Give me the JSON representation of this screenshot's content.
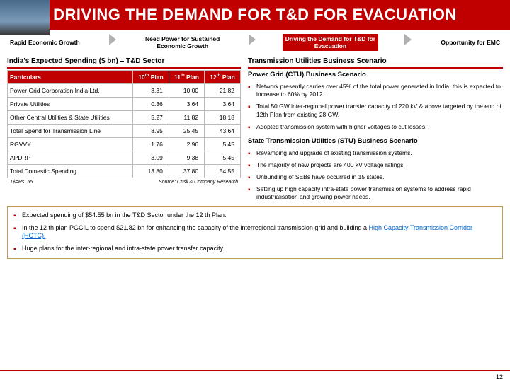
{
  "banner": {
    "title": "DRIVING THE DEMAND FOR T&D FOR EVACUATION"
  },
  "flow": [
    {
      "label": "Rapid Economic Growth",
      "active": false
    },
    {
      "label": "Need Power for Sustained<br>Economic Growth",
      "active": false
    },
    {
      "label": "Driving the Demand for T&D for<br>Evacuation",
      "active": true
    },
    {
      "label": "Opportunity for EMC",
      "active": false
    }
  ],
  "table": {
    "title": "India's Expected Spending ($ bn) – T&D Sector",
    "headers": [
      "Particulars",
      "10th Plan",
      "11th Plan",
      "12th Plan"
    ],
    "rows": [
      [
        "Power Grid Corporation India Ltd.",
        "3.31",
        "10.00",
        "21.82"
      ],
      [
        "Private Utilities",
        "0.36",
        "3.64",
        "3.64"
      ],
      [
        "Other Central Utilities & State Utilities",
        "5.27",
        "11.82",
        "18.18"
      ],
      [
        "Total Spend for Transmission Line",
        "8.95",
        "25.45",
        "43.64"
      ],
      [
        "RGVVY",
        "1.76",
        "2.96",
        "5.45"
      ],
      [
        "APDRP",
        "3.09",
        "9.38",
        "5.45"
      ],
      [
        "Total Domestic Spending",
        "13.80",
        "37.80",
        "54.55"
      ]
    ],
    "footnote_left": "1$=Rs. 55",
    "footnote_right": "Source: Crisil & Company Research"
  },
  "right_title": "Transmission Utilities Business Scenario",
  "ctu": {
    "title": "Power Grid (CTU) Business Scenario",
    "bullets": [
      "Network presently carries over 45% of the total power generated in India; this is expected to increase to 60% by 2012.",
      "Total 50 GW inter-regional power transfer capacity of 220 kV & above targeted by the end of 12th Plan from existing 28 GW.",
      "Adopted transmission system with higher voltages to cut losses."
    ]
  },
  "stu": {
    "title": "State Transmission Utilities (STU) Business Scenario",
    "bullets": [
      "Revamping and upgrade of existing transmission systems.",
      "The majority of new projects are 400 kV voltage ratings.",
      "Unbundling of SEBs have occurred in 15 states.",
      "Setting up high capacity intra-state power transmission systems to address rapid industrialisation and growing power needs."
    ]
  },
  "bottom": [
    "Expected spending of $54.55 bn in the T&D Sector under the 12 th Plan.",
    "In the 12 th plan PGCIL to spend $21.82 bn for enhancing the capacity of the interregional transmission grid and building a <span class='link'>High Capacity Transmission Corridor (HCTC).</span>",
    "Huge plans for the inter-regional and intra-state power transfer capacity."
  ],
  "page": "12"
}
